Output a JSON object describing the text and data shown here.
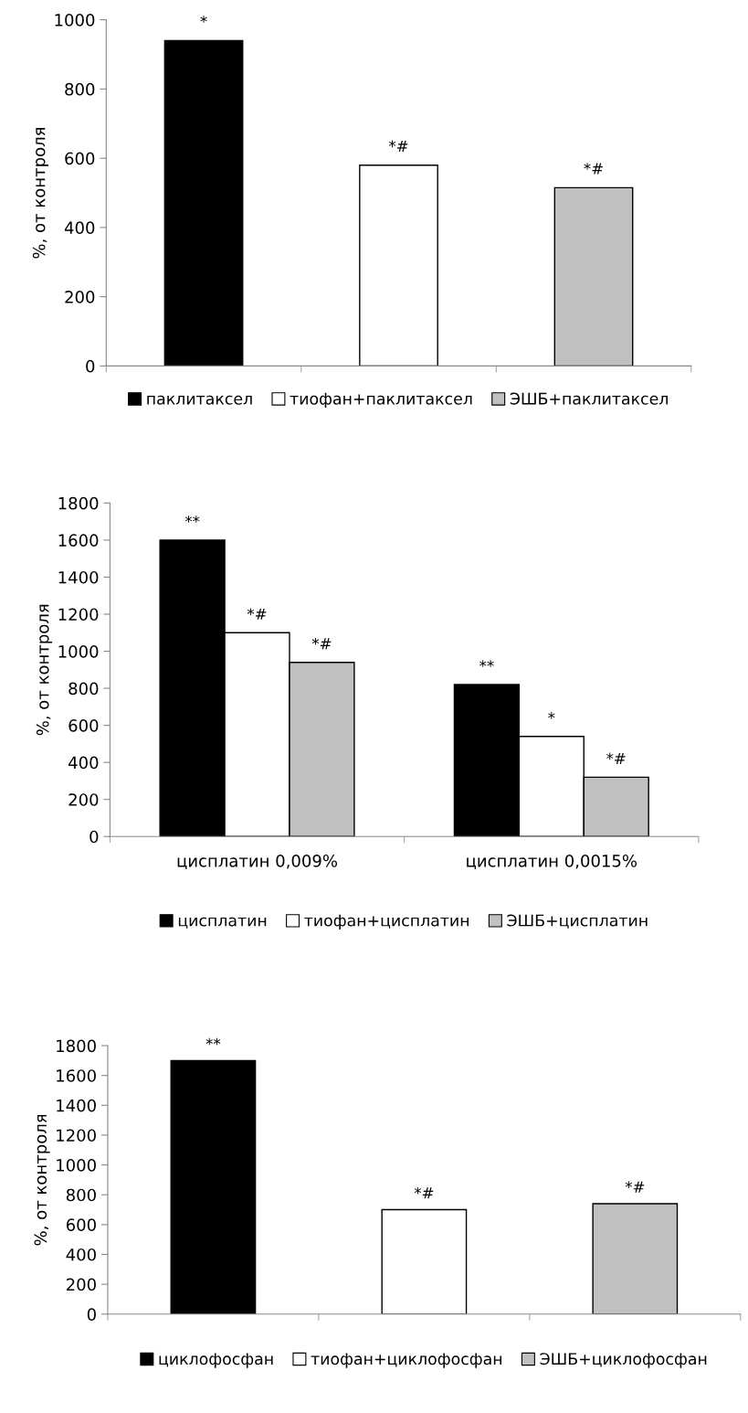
{
  "chart_data": [
    {
      "type": "bar",
      "ylabel": "%, от контроля",
      "categories": [
        null,
        null,
        null
      ],
      "ylim": [
        0,
        1000
      ],
      "yticks": [
        0,
        200,
        400,
        600,
        800,
        1000
      ],
      "grid": false,
      "legend": "bottom",
      "series": [
        {
          "name": "паклитаксел",
          "color": "#000000",
          "values": [
            940,
            null,
            null
          ],
          "value_labels": [
            "*",
            null,
            null
          ]
        },
        {
          "name": "тиофан+паклитаксел",
          "color": "#ffffff",
          "values": [
            null,
            580,
            null
          ],
          "value_labels": [
            null,
            "*#",
            null
          ]
        },
        {
          "name": "ЭШБ+паклитаксел",
          "color": "#c0c0c0",
          "values": [
            null,
            null,
            515
          ],
          "value_labels": [
            null,
            null,
            "*#"
          ]
        }
      ]
    },
    {
      "type": "bar",
      "ylabel": "%, от контроля",
      "categories": [
        "цисплатин 0,009%",
        "цисплатин 0,0015%"
      ],
      "ylim": [
        0,
        1800
      ],
      "yticks": [
        0,
        200,
        400,
        600,
        800,
        1000,
        1200,
        1400,
        1600,
        1800
      ],
      "grid": false,
      "legend": "bottom",
      "series": [
        {
          "name": "цисплатин",
          "color": "#000000",
          "values": [
            1600,
            820
          ],
          "value_labels": [
            "**",
            "**"
          ]
        },
        {
          "name": "тиофан+цисплатин",
          "color": "#ffffff",
          "values": [
            1100,
            540
          ],
          "value_labels": [
            "*#",
            "*"
          ]
        },
        {
          "name": "ЭШБ+цисплатин",
          "color": "#c0c0c0",
          "values": [
            940,
            320
          ],
          "value_labels": [
            "*#",
            "*#"
          ]
        }
      ]
    },
    {
      "type": "bar",
      "ylabel": "%, от контроля",
      "categories": [
        null,
        null,
        null
      ],
      "ylim": [
        0,
        1800
      ],
      "yticks": [
        0,
        200,
        400,
        600,
        800,
        1000,
        1200,
        1400,
        1600,
        1800
      ],
      "grid": false,
      "legend": "bottom",
      "series": [
        {
          "name": "циклофосфан",
          "color": "#000000",
          "values": [
            1700,
            null,
            null
          ],
          "value_labels": [
            "**",
            null,
            null
          ]
        },
        {
          "name": "тиофан+циклофосфан",
          "color": "#ffffff",
          "values": [
            null,
            700,
            null
          ],
          "value_labels": [
            null,
            "*#",
            null
          ]
        },
        {
          "name": "ЭШБ+циклофосфан",
          "color": "#c0c0c0",
          "values": [
            null,
            null,
            740
          ],
          "value_labels": [
            null,
            null,
            "*#"
          ]
        }
      ]
    }
  ]
}
